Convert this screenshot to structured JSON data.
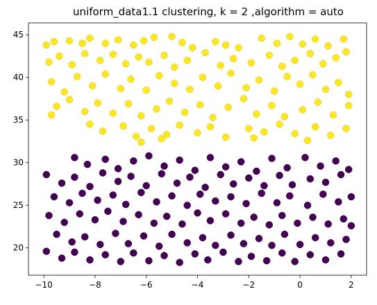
{
  "chart_data": {
    "type": "scatter",
    "title": "uniform_data1.1 clustering, k = 2 ,algorithm = auto",
    "xlim": [
      -10.6,
      2.6
    ],
    "ylim": [
      16.8,
      46.4
    ],
    "x_ticks": [
      -10,
      -8,
      -6,
      -4,
      -2,
      0,
      2
    ],
    "x_tick_labels": [
      "−10",
      "−8",
      "−6",
      "−4",
      "−2",
      "0",
      "2"
    ],
    "y_ticks": [
      20,
      25,
      30,
      35,
      40,
      45
    ],
    "y_tick_labels": [
      "20",
      "25",
      "30",
      "35",
      "40",
      "45"
    ],
    "grid": false,
    "legend": "none",
    "series": [
      {
        "color": "#fde725",
        "points": [
          [
            -9.9,
            43.8
          ],
          [
            -9.6,
            44.2
          ],
          [
            -9.0,
            44.3
          ],
          [
            -8.5,
            44.0
          ],
          [
            -8.2,
            44.6
          ],
          [
            -7.6,
            44.0
          ],
          [
            -7.1,
            44.4
          ],
          [
            -6.5,
            43.8
          ],
          [
            -6.1,
            44.3
          ],
          [
            -5.7,
            44.7
          ],
          [
            -5.0,
            44.8
          ],
          [
            -4.6,
            44.1
          ],
          [
            -4.2,
            43.5
          ],
          [
            -3.3,
            44.2
          ],
          [
            -2.9,
            43.8
          ],
          [
            -2.4,
            43.5
          ],
          [
            -1.5,
            44.6
          ],
          [
            -0.9,
            44.0
          ],
          [
            -0.4,
            44.8
          ],
          [
            0.1,
            43.9
          ],
          [
            0.6,
            44.5
          ],
          [
            1.1,
            43.7
          ],
          [
            1.7,
            44.5
          ],
          [
            1.8,
            43.0
          ],
          [
            -9.8,
            41.8
          ],
          [
            -9.4,
            42.5
          ],
          [
            -8.9,
            41.5
          ],
          [
            -8.4,
            42.8
          ],
          [
            -7.8,
            42.0
          ],
          [
            -7.3,
            42.7
          ],
          [
            -6.8,
            41.6
          ],
          [
            -6.3,
            42.4
          ],
          [
            -5.9,
            41.8
          ],
          [
            -5.3,
            42.6
          ],
          [
            -4.9,
            41.2
          ],
          [
            -4.4,
            42.0
          ],
          [
            -3.7,
            42.9
          ],
          [
            -3.1,
            41.4
          ],
          [
            -2.6,
            42.2
          ],
          [
            -1.9,
            41.7
          ],
          [
            -1.2,
            42.6
          ],
          [
            -0.7,
            41.3
          ],
          [
            -0.2,
            42.0
          ],
          [
            0.4,
            42.8
          ],
          [
            0.9,
            41.6
          ],
          [
            1.4,
            42.3
          ],
          [
            -9.7,
            39.5
          ],
          [
            -9.2,
            38.3
          ],
          [
            -8.7,
            40.1
          ],
          [
            -8.1,
            39.0
          ],
          [
            -7.6,
            40.4
          ],
          [
            -7.0,
            38.7
          ],
          [
            -6.6,
            39.8
          ],
          [
            -6.0,
            38.5
          ],
          [
            -5.5,
            40.2
          ],
          [
            -4.9,
            39.3
          ],
          [
            -4.3,
            38.6
          ],
          [
            -3.8,
            40.0
          ],
          [
            -3.2,
            39.0
          ],
          [
            -2.7,
            40.5
          ],
          [
            -2.1,
            38.8
          ],
          [
            -1.6,
            39.7
          ],
          [
            -1.0,
            38.4
          ],
          [
            -0.5,
            40.1
          ],
          [
            0.0,
            39.2
          ],
          [
            0.5,
            40.3
          ],
          [
            1.0,
            38.6
          ],
          [
            1.5,
            39.4
          ],
          [
            1.9,
            38.0
          ],
          [
            -9.5,
            36.6
          ],
          [
            -9.0,
            37.4
          ],
          [
            -8.4,
            36.0
          ],
          [
            -7.9,
            37.0
          ],
          [
            -7.3,
            35.8
          ],
          [
            -6.7,
            36.9
          ],
          [
            -6.2,
            35.5
          ],
          [
            -5.6,
            36.3
          ],
          [
            -5.1,
            37.2
          ],
          [
            -4.5,
            35.9
          ],
          [
            -3.9,
            36.8
          ],
          [
            -3.4,
            35.3
          ],
          [
            -2.8,
            36.5
          ],
          [
            -2.2,
            37.5
          ],
          [
            -1.7,
            35.7
          ],
          [
            -1.1,
            36.7
          ],
          [
            -0.6,
            35.4
          ],
          [
            0.1,
            36.2
          ],
          [
            0.7,
            37.1
          ],
          [
            1.3,
            35.6
          ],
          [
            1.9,
            36.7
          ],
          [
            -9.7,
            35.6
          ],
          [
            -8.2,
            34.5
          ],
          [
            -7.7,
            33.7
          ],
          [
            -6.9,
            34.3
          ],
          [
            -6.4,
            33.1
          ],
          [
            -5.8,
            34.0
          ],
          [
            -5.2,
            33.3
          ],
          [
            -4.7,
            34.4
          ],
          [
            -4.0,
            33.5
          ],
          [
            -3.5,
            34.2
          ],
          [
            -2.9,
            33.0
          ],
          [
            -2.0,
            34.0
          ],
          [
            -1.4,
            33.6
          ],
          [
            -0.8,
            34.5
          ],
          [
            -0.2,
            33.4
          ],
          [
            0.6,
            34.2
          ],
          [
            1.2,
            33.2
          ],
          [
            1.8,
            34.0
          ],
          [
            -6.2,
            32.4
          ],
          [
            -5.4,
            32.8
          ],
          [
            -1.8,
            32.9
          ],
          [
            0.3,
            32.6
          ]
        ]
      },
      {
        "color": "#440154",
        "points": [
          [
            -8.8,
            30.6
          ],
          [
            -8.3,
            29.8
          ],
          [
            -7.6,
            30.4
          ],
          [
            -7.1,
            29.3
          ],
          [
            -6.5,
            30.2
          ],
          [
            -5.9,
            30.8
          ],
          [
            -5.3,
            29.6
          ],
          [
            -4.7,
            30.3
          ],
          [
            -4.1,
            29.1
          ],
          [
            -3.5,
            30.6
          ],
          [
            -2.9,
            29.5
          ],
          [
            -2.3,
            30.1
          ],
          [
            -1.7,
            29.0
          ],
          [
            -1.1,
            30.5
          ],
          [
            -0.5,
            29.4
          ],
          [
            0.2,
            30.6
          ],
          [
            0.8,
            29.6
          ],
          [
            1.4,
            30.2
          ],
          [
            1.9,
            29.2
          ],
          [
            -9.9,
            28.6
          ],
          [
            -9.3,
            27.6
          ],
          [
            -8.8,
            28.3
          ],
          [
            -8.2,
            27.2
          ],
          [
            -7.7,
            28.8
          ],
          [
            -7.1,
            27.8
          ],
          [
            -6.6,
            28.4
          ],
          [
            -6.0,
            27.3
          ],
          [
            -5.4,
            28.7
          ],
          [
            -4.8,
            27.6
          ],
          [
            -4.3,
            28.3
          ],
          [
            -3.7,
            27.1
          ],
          [
            -3.1,
            28.6
          ],
          [
            -2.6,
            27.5
          ],
          [
            -2.0,
            28.2
          ],
          [
            -1.4,
            27.3
          ],
          [
            -0.8,
            28.5
          ],
          [
            -0.3,
            27.4
          ],
          [
            0.4,
            28.1
          ],
          [
            1.0,
            27.7
          ],
          [
            1.6,
            28.6
          ],
          [
            -9.6,
            26.0
          ],
          [
            -9.0,
            25.3
          ],
          [
            -8.5,
            26.4
          ],
          [
            -7.9,
            25.6
          ],
          [
            -7.3,
            26.2
          ],
          [
            -6.8,
            25.1
          ],
          [
            -6.2,
            26.5
          ],
          [
            -5.6,
            25.4
          ],
          [
            -5.0,
            26.1
          ],
          [
            -4.4,
            25.0
          ],
          [
            -3.9,
            26.3
          ],
          [
            -3.3,
            25.5
          ],
          [
            -2.7,
            26.0
          ],
          [
            -2.1,
            25.2
          ],
          [
            -1.5,
            26.4
          ],
          [
            -0.9,
            25.3
          ],
          [
            -0.4,
            26.1
          ],
          [
            0.3,
            25.0
          ],
          [
            0.9,
            26.3
          ],
          [
            1.5,
            25.4
          ],
          [
            2.0,
            26.0
          ],
          [
            -9.8,
            23.8
          ],
          [
            -9.2,
            23.0
          ],
          [
            -8.6,
            24.0
          ],
          [
            -8.0,
            23.3
          ],
          [
            -7.5,
            24.3
          ],
          [
            -6.9,
            23.1
          ],
          [
            -6.3,
            23.9
          ],
          [
            -5.7,
            22.9
          ],
          [
            -5.2,
            23.7
          ],
          [
            -4.6,
            22.8
          ],
          [
            -4.0,
            24.1
          ],
          [
            -3.5,
            23.2
          ],
          [
            -2.9,
            24.0
          ],
          [
            -2.3,
            22.9
          ],
          [
            -1.8,
            23.6
          ],
          [
            -1.2,
            22.7
          ],
          [
            -0.7,
            23.8
          ],
          [
            -0.1,
            22.9
          ],
          [
            0.5,
            23.6
          ],
          [
            1.1,
            22.8
          ],
          [
            1.7,
            23.4
          ],
          [
            2.0,
            22.6
          ],
          [
            -9.5,
            21.6
          ],
          [
            -8.9,
            20.7
          ],
          [
            -8.4,
            21.3
          ],
          [
            -7.8,
            20.4
          ],
          [
            -7.2,
            21.7
          ],
          [
            -6.7,
            20.5
          ],
          [
            -6.1,
            21.4
          ],
          [
            -5.5,
            20.2
          ],
          [
            -5.0,
            21.6
          ],
          [
            -4.4,
            20.6
          ],
          [
            -3.8,
            21.2
          ],
          [
            -3.3,
            20.3
          ],
          [
            -2.7,
            21.5
          ],
          [
            -2.2,
            20.5
          ],
          [
            -1.6,
            21.1
          ],
          [
            -1.1,
            20.3
          ],
          [
            -0.6,
            21.6
          ],
          [
            0.0,
            20.4
          ],
          [
            0.6,
            21.2
          ],
          [
            1.2,
            20.6
          ],
          [
            1.8,
            21.0
          ],
          [
            -9.9,
            19.6
          ],
          [
            -9.3,
            18.8
          ],
          [
            -8.8,
            19.5
          ],
          [
            -8.2,
            18.6
          ],
          [
            -7.6,
            19.2
          ],
          [
            -7.0,
            18.4
          ],
          [
            -6.5,
            19.4
          ],
          [
            -5.9,
            18.5
          ],
          [
            -5.3,
            19.1
          ],
          [
            -4.7,
            18.3
          ],
          [
            -4.1,
            19.3
          ],
          [
            -3.6,
            18.6
          ],
          [
            -3.0,
            19.5
          ],
          [
            -2.4,
            18.4
          ],
          [
            -1.9,
            19.0
          ],
          [
            -1.3,
            18.5
          ],
          [
            -0.7,
            19.4
          ],
          [
            -0.2,
            18.4
          ],
          [
            0.4,
            19.2
          ],
          [
            1.0,
            18.6
          ],
          [
            1.6,
            19.3
          ]
        ]
      }
    ]
  }
}
